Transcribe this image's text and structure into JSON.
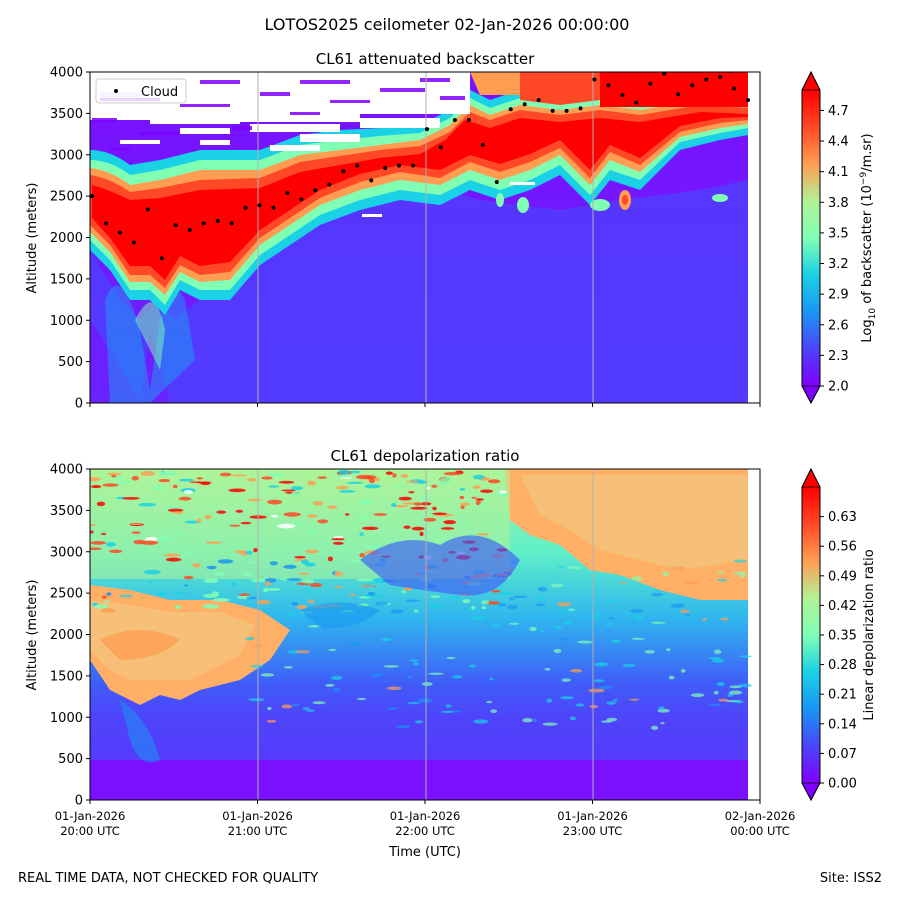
{
  "suptitle": "LOTOS2025 ceilometer 02-Jan-2026 00:00:00",
  "footer_left": "REAL TIME DATA, NOT CHECKED FOR QUALITY",
  "footer_right": "Site: ISS2",
  "x_tick_labels": [
    [
      "01-Jan-2026",
      "20:00 UTC"
    ],
    [
      "01-Jan-2026",
      "21:00 UTC"
    ],
    [
      "01-Jan-2026",
      "22:00 UTC"
    ],
    [
      "01-Jan-2026",
      "23:00 UTC"
    ],
    [
      "02-Jan-2026",
      "00:00 UTC"
    ]
  ],
  "chart_data": [
    {
      "type": "heatmap",
      "title": "CL61 attenuated backscatter",
      "xlabel": "",
      "ylabel": "Altitude (meters)",
      "xlim": [
        "2026-01-01 20:00",
        "2026-01-02 00:00"
      ],
      "ylim": [
        0,
        4000
      ],
      "yticks": [
        0,
        500,
        1000,
        1500,
        2000,
        2500,
        3000,
        3500,
        4000
      ],
      "grid": "vertical lines at each hour",
      "legend": {
        "placement": "upper-left",
        "entries": [
          "Cloud"
        ]
      },
      "colorbar": {
        "label_prefix": "Log",
        "label_sub": "10",
        "label_mid": " of backscatter (10",
        "label_sup": "−9",
        "label_suffix": "/m.sr)",
        "range": [
          2.0,
          4.9
        ],
        "ticks": [
          "2.0",
          "2.3",
          "2.6",
          "2.9",
          "3.2",
          "3.5",
          "3.8",
          "4.1",
          "4.4",
          "4.7"
        ],
        "colormap": "rainbow",
        "extend": "both"
      },
      "cloud_base": {
        "name": "Cloud",
        "time_minutes": [
          0,
          5,
          10,
          15,
          20,
          25,
          30,
          35,
          40,
          45,
          50,
          55,
          60,
          65,
          70,
          75,
          80,
          85,
          90,
          95,
          100,
          105,
          110,
          115,
          120,
          125,
          130,
          135,
          140,
          145,
          150,
          155,
          160,
          165,
          170,
          175,
          180,
          185,
          190,
          195,
          200,
          205,
          210,
          215,
          220,
          225,
          230,
          235
        ],
        "altitude_m": [
          2500,
          2170,
          2060,
          1940,
          2340,
          1750,
          2150,
          2090,
          2170,
          2200,
          2170,
          2360,
          2390,
          2360,
          2540,
          2460,
          2570,
          2640,
          2800,
          2870,
          2690,
          2840,
          2870,
          2870,
          3310,
          3090,
          3420,
          3420,
          3120,
          2670,
          3550,
          3610,
          3660,
          3530,
          3530,
          3560,
          3910,
          3840,
          3720,
          3630,
          3860,
          3980,
          3730,
          3840,
          3910,
          3940,
          3800,
          3660
        ]
      }
    },
    {
      "type": "heatmap",
      "title": "CL61 depolarization ratio",
      "xlabel": "Time (UTC)",
      "ylabel": "Altitude (meters)",
      "xlim": [
        "2026-01-01 20:00",
        "2026-01-02 00:00"
      ],
      "ylim": [
        0,
        4000
      ],
      "yticks": [
        0,
        500,
        1000,
        1500,
        2000,
        2500,
        3000,
        3500,
        4000
      ],
      "grid": "vertical lines at each hour",
      "colorbar": {
        "label": "Linear depolarization ratio",
        "range": [
          0.0,
          0.7
        ],
        "ticks": [
          "0.00",
          "0.07",
          "0.14",
          "0.21",
          "0.28",
          "0.35",
          "0.42",
          "0.49",
          "0.56",
          "0.63"
        ],
        "colormap": "rainbow",
        "extend": "both"
      }
    }
  ]
}
